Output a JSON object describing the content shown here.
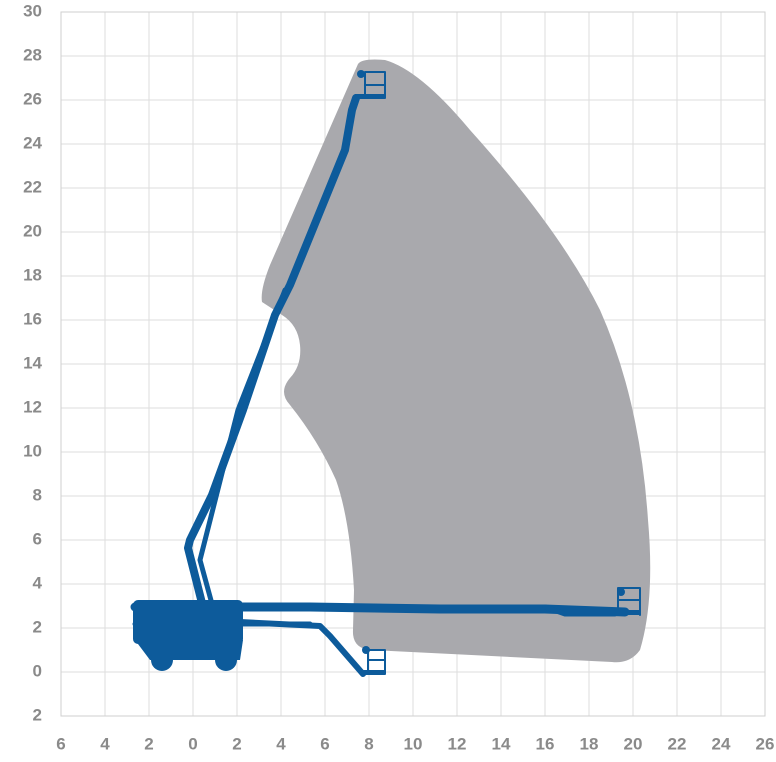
{
  "chart_data": {
    "type": "range",
    "xlim": [
      -6,
      26
    ],
    "xticks": [
      {
        "value": -6,
        "label": "6"
      },
      {
        "value": -4,
        "label": "4"
      },
      {
        "value": -2,
        "label": "2"
      },
      0,
      2,
      4,
      6,
      8,
      10,
      12,
      14,
      16,
      18,
      20,
      22,
      24,
      26
    ],
    "ylim": [
      -2,
      30
    ],
    "yticks": [
      {
        "value": -2,
        "label": "2"
      },
      0,
      2,
      4,
      6,
      8,
      10,
      12,
      14,
      16,
      18,
      20,
      22,
      24,
      26,
      28,
      30
    ],
    "grid": true
  }
}
